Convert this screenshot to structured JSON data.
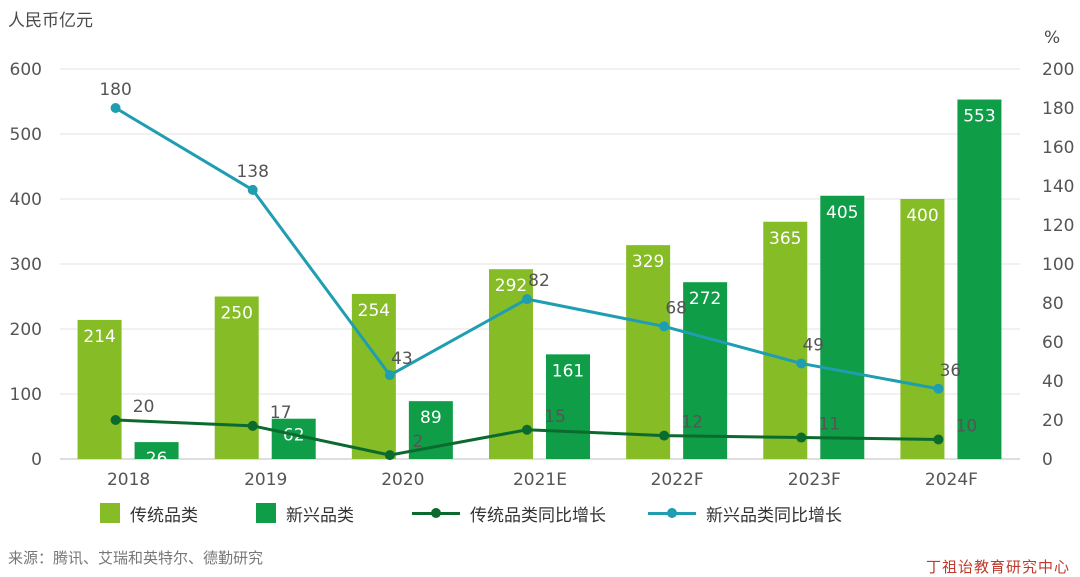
{
  "left_axis_unit": "人民币亿元",
  "right_axis_unit": "%",
  "source": "来源：腾讯、艾瑞和英特尔、德勤研究",
  "watermark": "丁祖诒教育研究中心",
  "colors": {
    "traditional_bar": "#86bc25",
    "emerging_bar": "#0f9d48",
    "traditional_line": "#0b6b2f",
    "emerging_line": "#1f9db1",
    "bar_label": "#ffffff",
    "axis_text": "#555555"
  },
  "legend": [
    {
      "label": "传统品类",
      "kind": "bar",
      "color_key": "traditional_bar"
    },
    {
      "label": "新兴品类",
      "kind": "bar",
      "color_key": "emerging_bar"
    },
    {
      "label": "传统品类同比增长",
      "kind": "line",
      "color_key": "traditional_line"
    },
    {
      "label": "新兴品类同比增长",
      "kind": "line",
      "color_key": "emerging_line"
    }
  ],
  "chart_data": {
    "type": "bar",
    "categories": [
      "2018",
      "2019",
      "2020",
      "2021E",
      "2022F",
      "2023F",
      "2024F"
    ],
    "series": [
      {
        "name": "传统品类",
        "type": "bar",
        "axis": "left",
        "values": [
          214,
          250,
          254,
          292,
          329,
          365,
          400
        ]
      },
      {
        "name": "新兴品类",
        "type": "bar",
        "axis": "left",
        "values": [
          26,
          62,
          89,
          161,
          272,
          405,
          553
        ]
      },
      {
        "name": "传统品类同比增长",
        "type": "line",
        "axis": "right",
        "values": [
          20,
          17,
          2,
          15,
          12,
          11,
          10
        ]
      },
      {
        "name": "新兴品类同比增长",
        "type": "line",
        "axis": "right",
        "values": [
          180,
          138,
          43,
          82,
          68,
          49,
          36
        ]
      }
    ],
    "ylabel": "人民币亿元",
    "y2label": "%",
    "ylim": [
      0,
      600
    ],
    "yticks": [
      0,
      100,
      200,
      300,
      400,
      500,
      600
    ],
    "y2lim": [
      0,
      200
    ],
    "y2ticks": [
      0,
      20,
      40,
      60,
      80,
      100,
      120,
      140,
      160,
      180,
      200
    ],
    "grid": true,
    "legend_position": "bottom"
  }
}
